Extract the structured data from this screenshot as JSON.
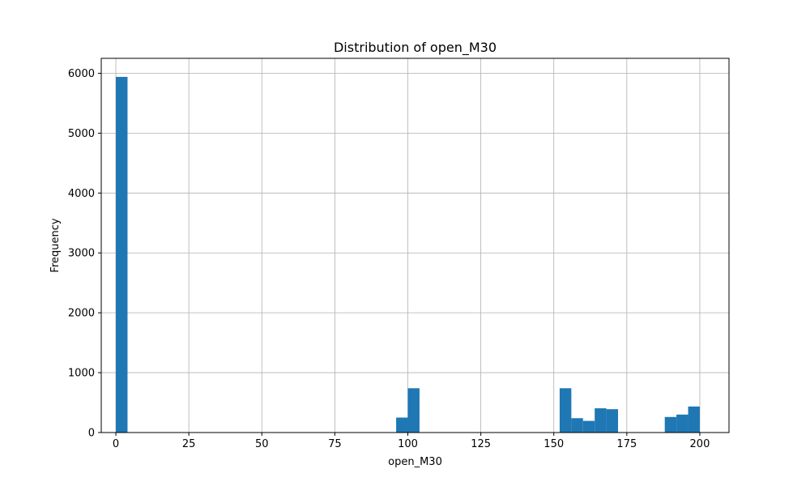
{
  "chart_data": {
    "type": "bar",
    "title": "Distribution of open_M30",
    "xlabel": "open_M30",
    "ylabel": "Frequency",
    "xlim": [
      -5,
      210
    ],
    "ylim": [
      0,
      6250
    ],
    "xticks": [
      0,
      25,
      50,
      75,
      100,
      125,
      150,
      175,
      200
    ],
    "yticks": [
      0,
      1000,
      2000,
      3000,
      4000,
      5000,
      6000
    ],
    "grid": true,
    "bar_color": "#1f77b4",
    "bins": [
      {
        "x0": 0.0,
        "x1": 4.0,
        "value": 5940
      },
      {
        "x0": 96.0,
        "x1": 100.0,
        "value": 250
      },
      {
        "x0": 100.0,
        "x1": 104.0,
        "value": 740
      },
      {
        "x0": 152.0,
        "x1": 156.0,
        "value": 740
      },
      {
        "x0": 156.0,
        "x1": 160.0,
        "value": 240
      },
      {
        "x0": 160.0,
        "x1": 164.0,
        "value": 195
      },
      {
        "x0": 164.0,
        "x1": 168.0,
        "value": 405
      },
      {
        "x0": 168.0,
        "x1": 172.0,
        "value": 390
      },
      {
        "x0": 188.0,
        "x1": 192.0,
        "value": 260
      },
      {
        "x0": 192.0,
        "x1": 196.0,
        "value": 300
      },
      {
        "x0": 196.0,
        "x1": 200.0,
        "value": 435
      }
    ]
  }
}
